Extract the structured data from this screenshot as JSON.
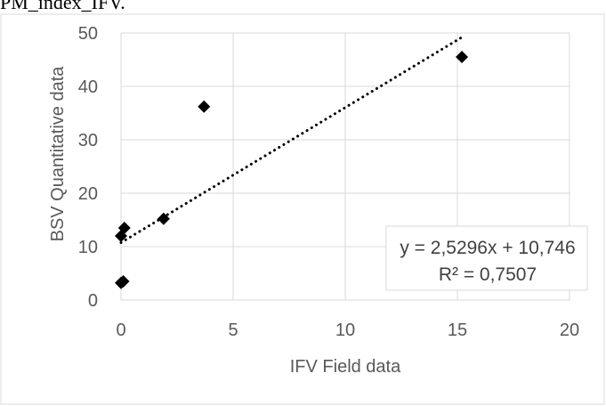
{
  "caption": "PM_index_IFV.",
  "chart_data": {
    "type": "scatter",
    "title": "",
    "xlabel": "IFV Field data",
    "ylabel": "BSV Quantitative data",
    "xlim": [
      0,
      20
    ],
    "ylim": [
      0,
      50
    ],
    "xticks": [
      0,
      5,
      10,
      15,
      20
    ],
    "yticks": [
      0,
      10,
      20,
      30,
      40,
      50
    ],
    "grid": true,
    "marker": "diamond",
    "marker_color": "#000000",
    "points": [
      {
        "x": 0.0,
        "y": 12.0
      },
      {
        "x": 0.15,
        "y": 13.5
      },
      {
        "x": 0.0,
        "y": 3.2
      },
      {
        "x": 0.1,
        "y": 3.5
      },
      {
        "x": 1.9,
        "y": 15.2
      },
      {
        "x": 3.7,
        "y": 36.2
      },
      {
        "x": 15.2,
        "y": 45.5
      }
    ],
    "trendline": {
      "type": "linear",
      "style": "dotted",
      "slope": 2.5296,
      "intercept": 10.746,
      "x_range": [
        0,
        15.2
      ],
      "equation": "y = 2,5296x + 10,746",
      "r2": "R² = 0,7507"
    }
  }
}
